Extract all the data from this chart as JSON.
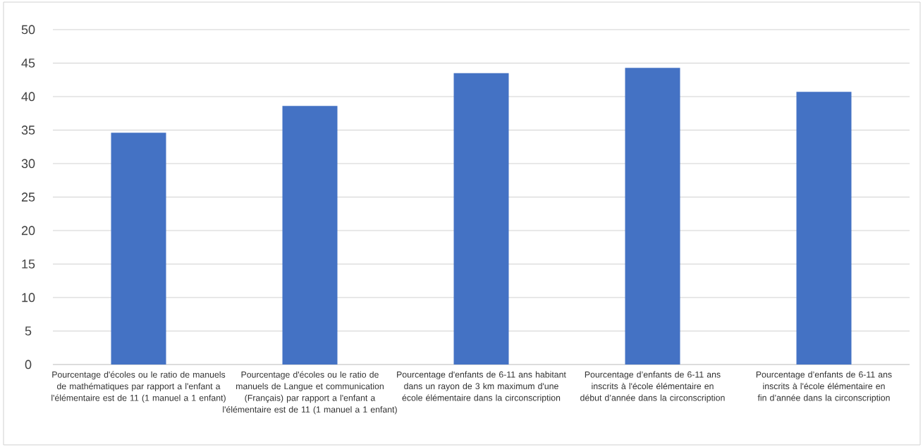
{
  "chart_data": {
    "type": "bar",
    "categories": [
      "Pourcentage d'écoles ou le ratio de manuels de mathématiques par rapport a l'enfant a l'élémentaire est de 11 (1 manuel a 1 enfant)",
      "Pourcentage d'écoles ou le ratio de manuels de Langue et communication (Français) par rapport a l'enfant a l'élémentaire est de 11 (1 manuel a 1 enfant)",
      "Pourcentage d'enfants de 6-11 ans habitant dans un rayon de 3 km maximum d'une école élémentaire dans la circonscription",
      "Pourcentage d’enfants de 6-11 ans inscrits à l'école élémentaire en début d’année dans la circonscription",
      "Pourcentage d’enfants de 6-11 ans inscrits à l'école élémentaire en fin d’année dans la circonscription"
    ],
    "values": [
      34.6,
      38.6,
      43.5,
      44.3,
      40.7
    ],
    "color": "#4472c4",
    "ylim": [
      0,
      50
    ],
    "yticks": [
      0,
      5,
      10,
      15,
      20,
      25,
      30,
      35,
      40,
      45,
      50
    ],
    "grid": "y"
  }
}
